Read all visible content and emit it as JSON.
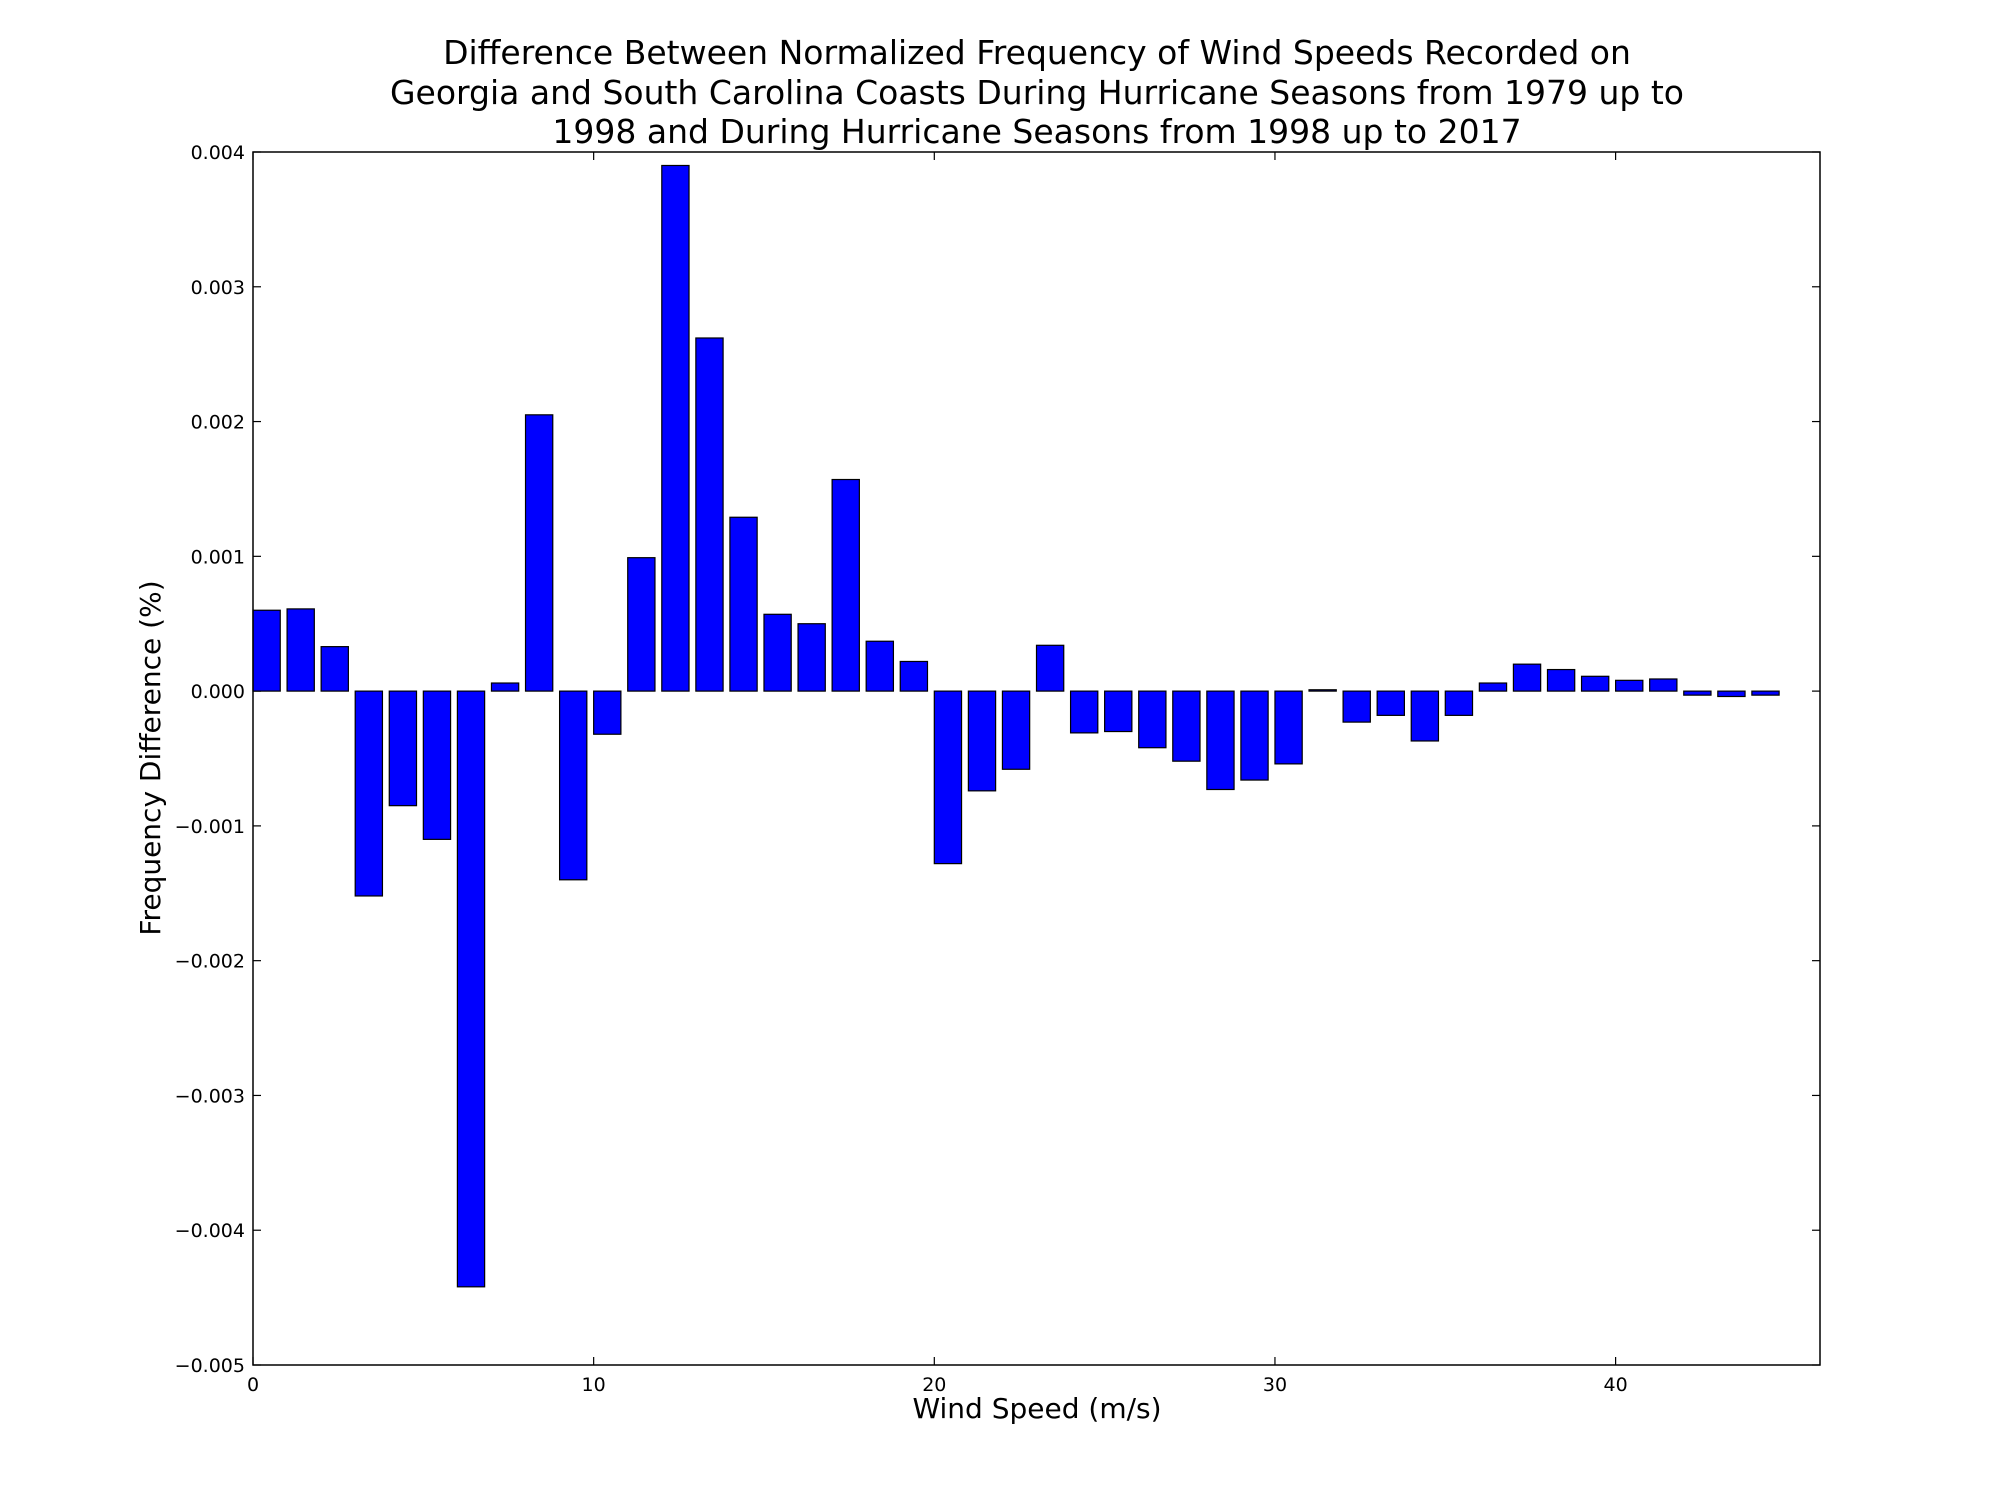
{
  "chart_data": {
    "type": "bar",
    "title_lines": [
      "Difference Between Normalized Frequency of Wind Speeds Recorded on",
      "Georgia and South Carolina Coasts During Hurricane Seasons from 1979 up to",
      "1998 and During Hurricane Seasons from 1998 up to 2017"
    ],
    "xlabel": "Wind Speed (m/s)",
    "ylabel": "Frequency Difference (%)",
    "xlim": [
      0,
      46
    ],
    "ylim": [
      -0.005,
      0.004
    ],
    "x_ticks": [
      0,
      10,
      20,
      30,
      40
    ],
    "x_tick_labels": [
      "0",
      "10",
      "20",
      "30",
      "40"
    ],
    "y_ticks": [
      0.004,
      0.003,
      0.002,
      0.001,
      0.0,
      -0.001,
      -0.002,
      -0.003,
      -0.004,
      -0.005
    ],
    "y_tick_labels": [
      "0.004",
      "0.003",
      "0.002",
      "0.001",
      "0.000",
      "−0.001",
      "−0.002",
      "−0.003",
      "−0.004",
      "−0.005"
    ],
    "bar_width": 0.8,
    "bar_color": "#0000ff",
    "bar_edge_color": "#000000",
    "grid": false,
    "x": [
      0,
      1,
      2,
      3,
      4,
      5,
      6,
      7,
      8,
      9,
      10,
      11,
      12,
      13,
      14,
      15,
      16,
      17,
      18,
      19,
      20,
      21,
      22,
      23,
      24,
      25,
      26,
      27,
      28,
      29,
      30,
      31,
      32,
      33,
      34,
      35,
      36,
      37,
      38,
      39,
      40,
      41,
      42,
      43,
      44
    ],
    "values": [
      0.0006,
      0.00061,
      0.00033,
      -0.00152,
      -0.00085,
      -0.0011,
      -0.00442,
      6e-05,
      0.00205,
      -0.0014,
      -0.00032,
      0.00099,
      0.0039,
      0.00262,
      0.00129,
      0.00057,
      0.0005,
      0.00157,
      0.00037,
      0.00022,
      -0.00128,
      -0.00074,
      -0.00058,
      0.00034,
      -0.00031,
      -0.0003,
      -0.00042,
      -0.00052,
      -0.00073,
      -0.00066,
      -0.00054,
      1e-05,
      -0.00023,
      -0.00018,
      -0.00037,
      -0.00018,
      6e-05,
      0.0002,
      0.00016,
      0.00011,
      8e-05,
      9e-05,
      -3e-05,
      -4e-05,
      -3e-05
    ]
  }
}
